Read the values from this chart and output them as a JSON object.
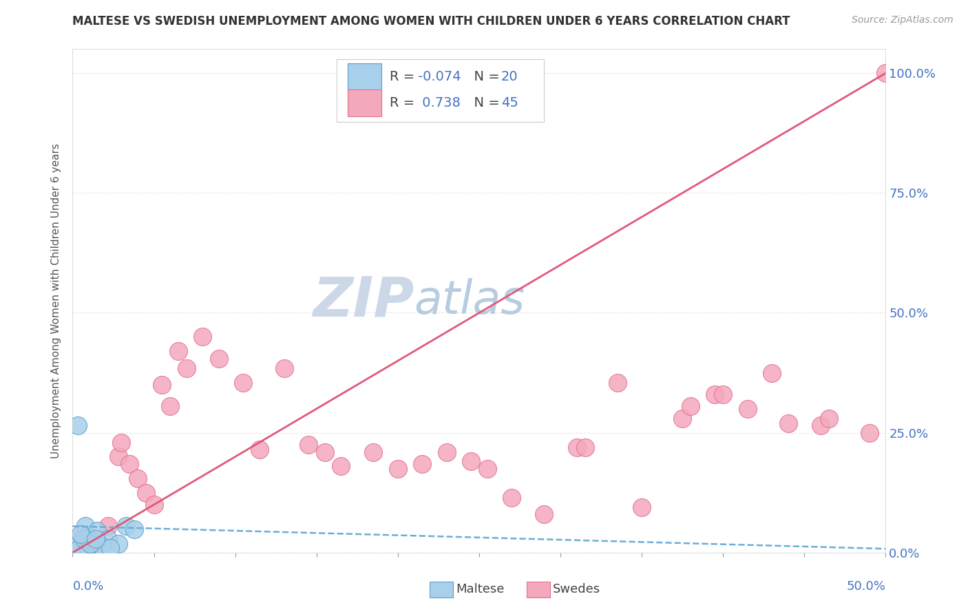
{
  "title": "MALTESE VS SWEDISH UNEMPLOYMENT AMONG WOMEN WITH CHILDREN UNDER 6 YEARS CORRELATION CHART",
  "source": "Source: ZipAtlas.com",
  "ylabel": "Unemployment Among Women with Children Under 6 years",
  "ytick_labels": [
    "0.0%",
    "25.0%",
    "50.0%",
    "75.0%",
    "100.0%"
  ],
  "ytick_values": [
    0.0,
    0.25,
    0.5,
    0.75,
    1.0
  ],
  "xlim": [
    0.0,
    0.5
  ],
  "ylim": [
    0.0,
    1.05
  ],
  "maltese_R": -0.074,
  "maltese_N": 20,
  "swedes_R": 0.738,
  "swedes_N": 45,
  "maltese_color": "#a8d0ea",
  "maltese_edge": "#5b9dc9",
  "swedes_color": "#f4a8bc",
  "swedes_edge": "#e07090",
  "trend_maltese_color": "#6aaed6",
  "trend_swedes_color": "#e05878",
  "grid_color": "#e8e8e8",
  "background_color": "#ffffff",
  "watermark_zip_color": "#ccd8e8",
  "watermark_atlas_color": "#b8cce0",
  "maltese_points": [
    [
      0.003,
      0.265
    ],
    [
      0.008,
      0.055
    ],
    [
      0.01,
      0.03
    ],
    [
      0.012,
      0.02
    ],
    [
      0.01,
      0.015
    ],
    [
      0.015,
      0.045
    ],
    [
      0.004,
      0.018
    ],
    [
      0.022,
      0.028
    ],
    [
      0.028,
      0.018
    ],
    [
      0.033,
      0.055
    ],
    [
      0.009,
      0.012
    ],
    [
      0.004,
      0.008
    ],
    [
      0.013,
      0.022
    ],
    [
      0.018,
      0.012
    ],
    [
      0.007,
      0.028
    ],
    [
      0.011,
      0.018
    ],
    [
      0.023,
      0.01
    ],
    [
      0.038,
      0.048
    ],
    [
      0.005,
      0.038
    ],
    [
      0.014,
      0.028
    ]
  ],
  "swedes_points": [
    [
      0.005,
      0.028
    ],
    [
      0.01,
      0.01
    ],
    [
      0.015,
      0.015
    ],
    [
      0.022,
      0.055
    ],
    [
      0.028,
      0.2
    ],
    [
      0.03,
      0.23
    ],
    [
      0.035,
      0.185
    ],
    [
      0.04,
      0.155
    ],
    [
      0.045,
      0.125
    ],
    [
      0.05,
      0.1
    ],
    [
      0.055,
      0.35
    ],
    [
      0.06,
      0.305
    ],
    [
      0.065,
      0.42
    ],
    [
      0.07,
      0.385
    ],
    [
      0.08,
      0.45
    ],
    [
      0.09,
      0.405
    ],
    [
      0.105,
      0.355
    ],
    [
      0.115,
      0.215
    ],
    [
      0.13,
      0.385
    ],
    [
      0.145,
      0.225
    ],
    [
      0.155,
      0.21
    ],
    [
      0.165,
      0.18
    ],
    [
      0.185,
      0.21
    ],
    [
      0.2,
      0.175
    ],
    [
      0.215,
      0.185
    ],
    [
      0.23,
      0.21
    ],
    [
      0.245,
      0.19
    ],
    [
      0.255,
      0.175
    ],
    [
      0.27,
      0.115
    ],
    [
      0.29,
      0.08
    ],
    [
      0.31,
      0.22
    ],
    [
      0.315,
      0.22
    ],
    [
      0.335,
      0.355
    ],
    [
      0.35,
      0.095
    ],
    [
      0.375,
      0.28
    ],
    [
      0.38,
      0.305
    ],
    [
      0.395,
      0.33
    ],
    [
      0.4,
      0.33
    ],
    [
      0.415,
      0.3
    ],
    [
      0.43,
      0.375
    ],
    [
      0.44,
      0.27
    ],
    [
      0.46,
      0.265
    ],
    [
      0.465,
      0.28
    ],
    [
      0.49,
      0.25
    ],
    [
      0.5,
      1.0
    ]
  ],
  "trend_swedes_x0": 0.0,
  "trend_swedes_y0": 0.0,
  "trend_swedes_x1": 0.5,
  "trend_swedes_y1": 1.0,
  "trend_maltese_x0": 0.0,
  "trend_maltese_y0": 0.055,
  "trend_maltese_x1": 0.5,
  "trend_maltese_y1": 0.008
}
